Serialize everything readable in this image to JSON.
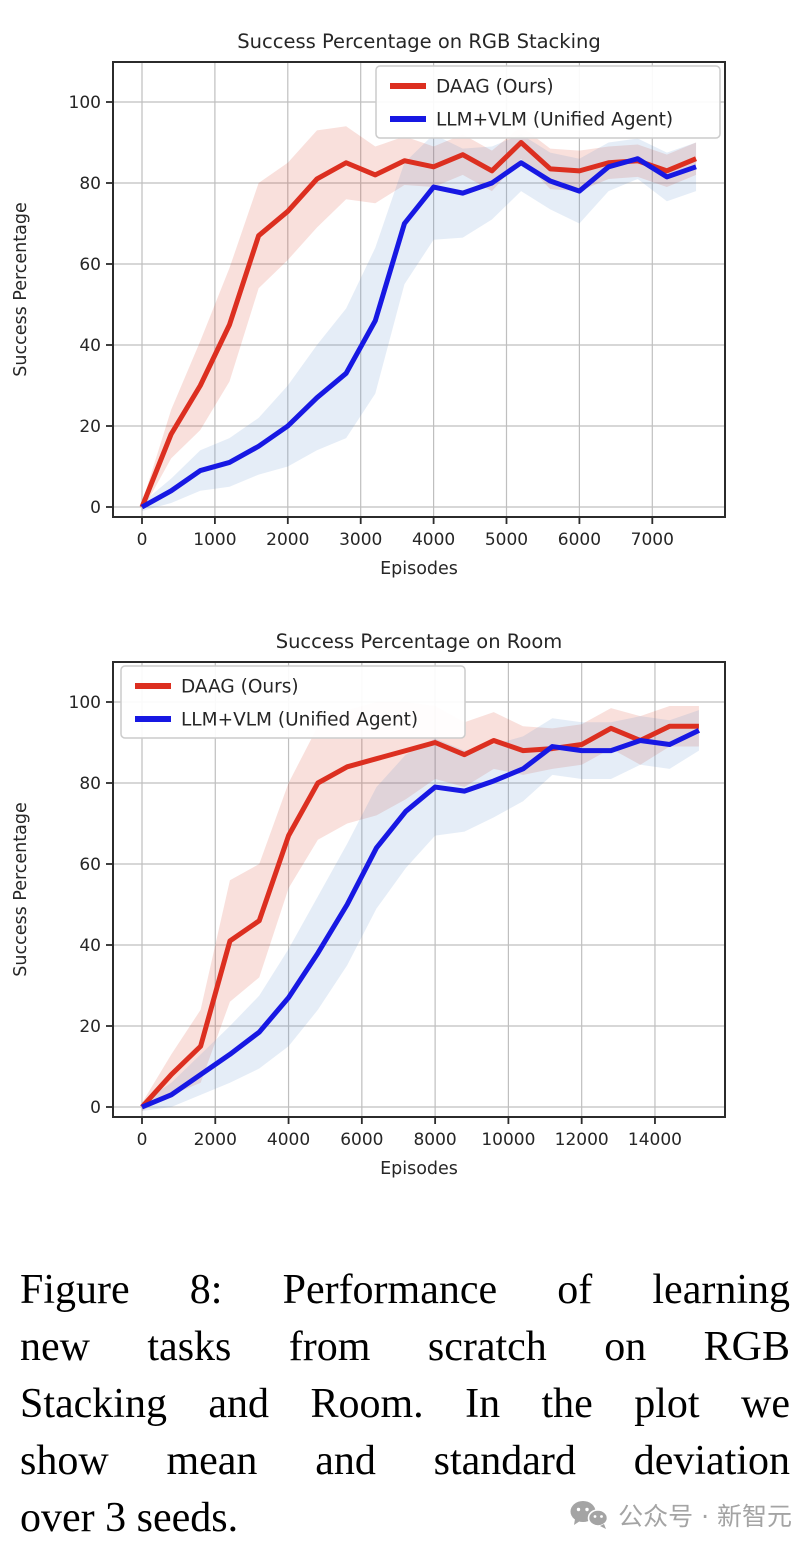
{
  "figure": {
    "caption_lines": [
      "Figure 8: Performance of learning",
      "new tasks from scratch on RGB",
      "Stacking and Room. In the plot we",
      "show mean and standard deviation",
      "over 3 seeds."
    ],
    "watermark_text": "公众号 · 新智元"
  },
  "colors": {
    "daag_line": "#dc2f20",
    "daag_band": "rgba(220,70,50,0.17)",
    "llm_line": "#1718e3",
    "llm_band": "rgba(95,145,205,0.16)",
    "grid": "#bfbfbf",
    "spine": "#2b2b2b",
    "text": "#262626",
    "watermark": "#a4a4a4"
  },
  "chart_data": [
    {
      "type": "line",
      "title": "Success Percentage on RGB Stacking",
      "xlabel": "Episodes",
      "ylabel": "Success Percentage",
      "xlim": [
        0,
        8000
      ],
      "ylim": [
        -2,
        110
      ],
      "xticks": [
        0,
        1000,
        2000,
        3000,
        4000,
        5000,
        6000,
        7000
      ],
      "yticks": [
        0,
        20,
        40,
        60,
        80,
        100
      ],
      "grid": true,
      "legend_position": "upper right",
      "x": [
        0,
        400,
        800,
        1200,
        1600,
        2000,
        2400,
        2800,
        3200,
        3600,
        4000,
        4400,
        4800,
        5200,
        5600,
        6000,
        6400,
        6800,
        7200,
        7600
      ],
      "series": [
        {
          "name": "DAAG (Ours)",
          "mean": [
            0,
            18,
            30,
            45,
            67,
            73,
            81,
            85,
            82,
            85.5,
            84,
            87,
            83,
            90,
            83.5,
            83,
            85,
            85.5,
            83,
            86
          ],
          "std": [
            1,
            6,
            11,
            14,
            13,
            12,
            12,
            9,
            7,
            6,
            5,
            5,
            5,
            4,
            5,
            5,
            4,
            4,
            4,
            4
          ]
        },
        {
          "name": "LLM+VLM (Unified Agent)",
          "mean": [
            0,
            4,
            9,
            11,
            15,
            20,
            27,
            33,
            46,
            70,
            79,
            77.5,
            80,
            85,
            80.5,
            78,
            84,
            86,
            81.5,
            84
          ],
          "std": [
            1,
            3,
            5,
            6,
            7,
            10,
            13,
            16,
            18,
            15,
            13,
            11,
            9,
            7,
            7,
            8,
            6,
            5,
            6,
            6
          ]
        }
      ]
    },
    {
      "type": "line",
      "title": "Success Percentage on Room",
      "xlabel": "Episodes",
      "ylabel": "Success Percentage",
      "xlim": [
        0,
        16000
      ],
      "ylim": [
        -2,
        110
      ],
      "xticks": [
        0,
        2000,
        4000,
        6000,
        8000,
        10000,
        12000,
        14000
      ],
      "yticks": [
        0,
        20,
        40,
        60,
        80,
        100
      ],
      "grid": true,
      "legend_position": "upper left",
      "x": [
        0,
        800,
        1600,
        2400,
        3200,
        4000,
        4800,
        5600,
        6400,
        7200,
        8000,
        8800,
        9600,
        10400,
        11200,
        12000,
        12800,
        13600,
        14400,
        15200
      ],
      "series": [
        {
          "name": "DAAG (Ours)",
          "mean": [
            0,
            8,
            15,
            41,
            46,
            67,
            80,
            84,
            86,
            88,
            90,
            87,
            90.5,
            88,
            88.5,
            89.5,
            93.5,
            90.5,
            94,
            94
          ],
          "std": [
            1,
            5,
            9,
            15,
            14,
            13,
            14,
            14,
            14,
            12,
            9,
            8,
            7,
            6,
            5,
            5,
            5,
            6,
            5,
            5
          ]
        },
        {
          "name": "LLM+VLM (Unified Agent)",
          "mean": [
            0,
            3,
            8,
            13,
            18.5,
            27,
            38,
            50,
            64,
            73,
            79,
            78,
            80.5,
            83.5,
            89,
            88,
            88,
            90.5,
            89.5,
            93
          ],
          "std": [
            1,
            3,
            5,
            7,
            9,
            12,
            14,
            15,
            15,
            14,
            12,
            10,
            9,
            8,
            7,
            7,
            7,
            6,
            6,
            5
          ]
        }
      ]
    }
  ]
}
